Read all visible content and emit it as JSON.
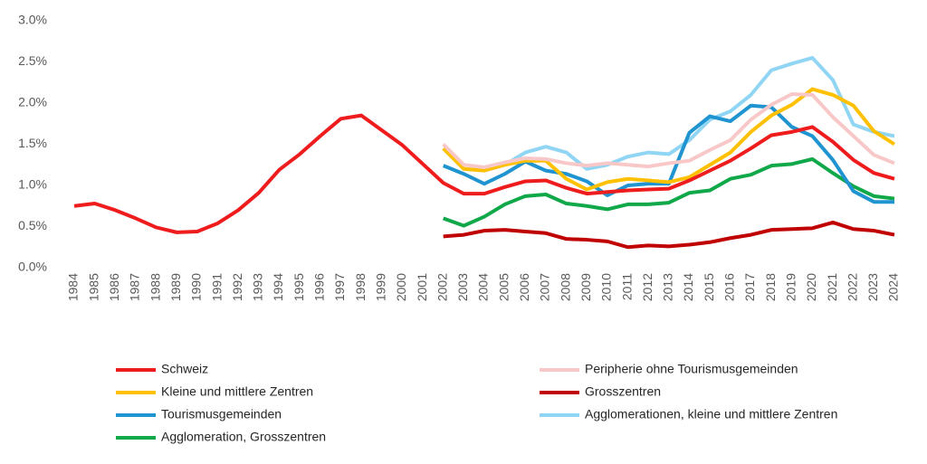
{
  "chart_data": {
    "type": "line",
    "categories": [
      "1984",
      "1985",
      "1986",
      "1987",
      "1988",
      "1989",
      "1990",
      "1991",
      "1992",
      "1993",
      "1994",
      "1995",
      "1996",
      "1997",
      "1998",
      "1999",
      "2000",
      "2001",
      "2002",
      "2003",
      "2004",
      "2005",
      "2006",
      "2007",
      "2008",
      "2009",
      "2010",
      "2011",
      "2012",
      "2013",
      "2014",
      "2015",
      "2016",
      "2017",
      "2018",
      "2019",
      "2020",
      "2021",
      "2022",
      "2023",
      "2024"
    ],
    "ylim": [
      0,
      3
    ],
    "yticks": [
      {
        "value": 0,
        "label": "0.0%"
      },
      {
        "value": 0.5,
        "label": "0.5%"
      },
      {
        "value": 1,
        "label": "1.0%"
      },
      {
        "value": 1.5,
        "label": "1.5%"
      },
      {
        "value": 2,
        "label": "2.0%"
      },
      {
        "value": 2.5,
        "label": "2.5%"
      },
      {
        "value": 3,
        "label": "3.0%"
      }
    ],
    "grid": false,
    "series": [
      {
        "name": "Schweiz",
        "color": "#ee1c1c",
        "values": [
          0.75,
          0.78,
          0.7,
          0.6,
          0.49,
          0.43,
          0.44,
          0.54,
          0.7,
          0.91,
          1.19,
          1.38,
          1.6,
          1.81,
          1.85,
          1.67,
          1.49,
          1.26,
          1.03,
          0.9,
          0.9,
          0.98,
          1.05,
          1.06,
          0.97,
          0.9,
          0.92,
          0.94,
          0.95,
          0.96,
          1.06,
          1.18,
          1.3,
          1.45,
          1.61,
          1.65,
          1.71,
          1.53,
          1.31,
          1.15,
          1.08
        ]
      },
      {
        "name": "Peripherie ohne Tourismusgemeinden",
        "color": "#f8c8c8",
        "values": [
          null,
          null,
          null,
          null,
          null,
          null,
          null,
          null,
          null,
          null,
          null,
          null,
          null,
          null,
          null,
          null,
          null,
          null,
          1.5,
          1.25,
          1.22,
          1.28,
          1.33,
          1.32,
          1.27,
          1.24,
          1.27,
          1.25,
          1.23,
          1.27,
          1.3,
          1.43,
          1.55,
          1.8,
          1.98,
          2.11,
          2.1,
          1.83,
          1.6,
          1.37,
          1.27
        ]
      },
      {
        "name": "Kleine und mittlere Zentren",
        "color": "#ffc000",
        "values": [
          null,
          null,
          null,
          null,
          null,
          null,
          null,
          null,
          null,
          null,
          null,
          null,
          null,
          null,
          null,
          null,
          null,
          null,
          1.45,
          1.2,
          1.18,
          1.25,
          1.3,
          1.3,
          1.08,
          0.95,
          1.04,
          1.08,
          1.06,
          1.04,
          1.1,
          1.25,
          1.4,
          1.65,
          1.85,
          1.98,
          2.17,
          2.1,
          1.97,
          1.66,
          1.5
        ]
      },
      {
        "name": "Grosszentren",
        "color": "#c00000",
        "values": [
          null,
          null,
          null,
          null,
          null,
          null,
          null,
          null,
          null,
          null,
          null,
          null,
          null,
          null,
          null,
          null,
          null,
          null,
          0.38,
          0.4,
          0.45,
          0.46,
          0.44,
          0.42,
          0.35,
          0.34,
          0.32,
          0.25,
          0.27,
          0.26,
          0.28,
          0.31,
          0.36,
          0.4,
          0.46,
          0.47,
          0.48,
          0.55,
          0.47,
          0.45,
          0.4
        ]
      },
      {
        "name": "Tourismusgemeinden",
        "color": "#1f94d0",
        "values": [
          null,
          null,
          null,
          null,
          null,
          null,
          null,
          null,
          null,
          null,
          null,
          null,
          null,
          null,
          null,
          null,
          null,
          null,
          1.24,
          1.14,
          1.02,
          1.14,
          1.29,
          1.18,
          1.14,
          1.05,
          0.88,
          1.0,
          1.02,
          1.02,
          1.64,
          1.84,
          1.78,
          1.97,
          1.95,
          1.71,
          1.6,
          1.31,
          0.93,
          0.8,
          0.8
        ]
      },
      {
        "name": "Agglomerationen, kleine und mittlere Zentren",
        "color": "#90d6f4",
        "values": [
          null,
          null,
          null,
          null,
          null,
          null,
          null,
          null,
          null,
          null,
          null,
          null,
          null,
          null,
          null,
          null,
          null,
          null,
          1.45,
          1.2,
          1.18,
          1.25,
          1.4,
          1.47,
          1.4,
          1.2,
          1.25,
          1.35,
          1.4,
          1.38,
          1.55,
          1.8,
          1.9,
          2.1,
          2.4,
          2.48,
          2.55,
          2.28,
          1.74,
          1.65,
          1.6
        ]
      },
      {
        "name": "Agglomeration, Grosszentren",
        "color": "#11a84a",
        "values": [
          null,
          null,
          null,
          null,
          null,
          null,
          null,
          null,
          null,
          null,
          null,
          null,
          null,
          null,
          null,
          null,
          null,
          null,
          0.6,
          0.51,
          0.62,
          0.77,
          0.87,
          0.89,
          0.78,
          0.75,
          0.71,
          0.77,
          0.77,
          0.79,
          0.91,
          0.94,
          1.08,
          1.13,
          1.24,
          1.26,
          1.32,
          1.15,
          0.99,
          0.87,
          0.84
        ]
      }
    ]
  }
}
